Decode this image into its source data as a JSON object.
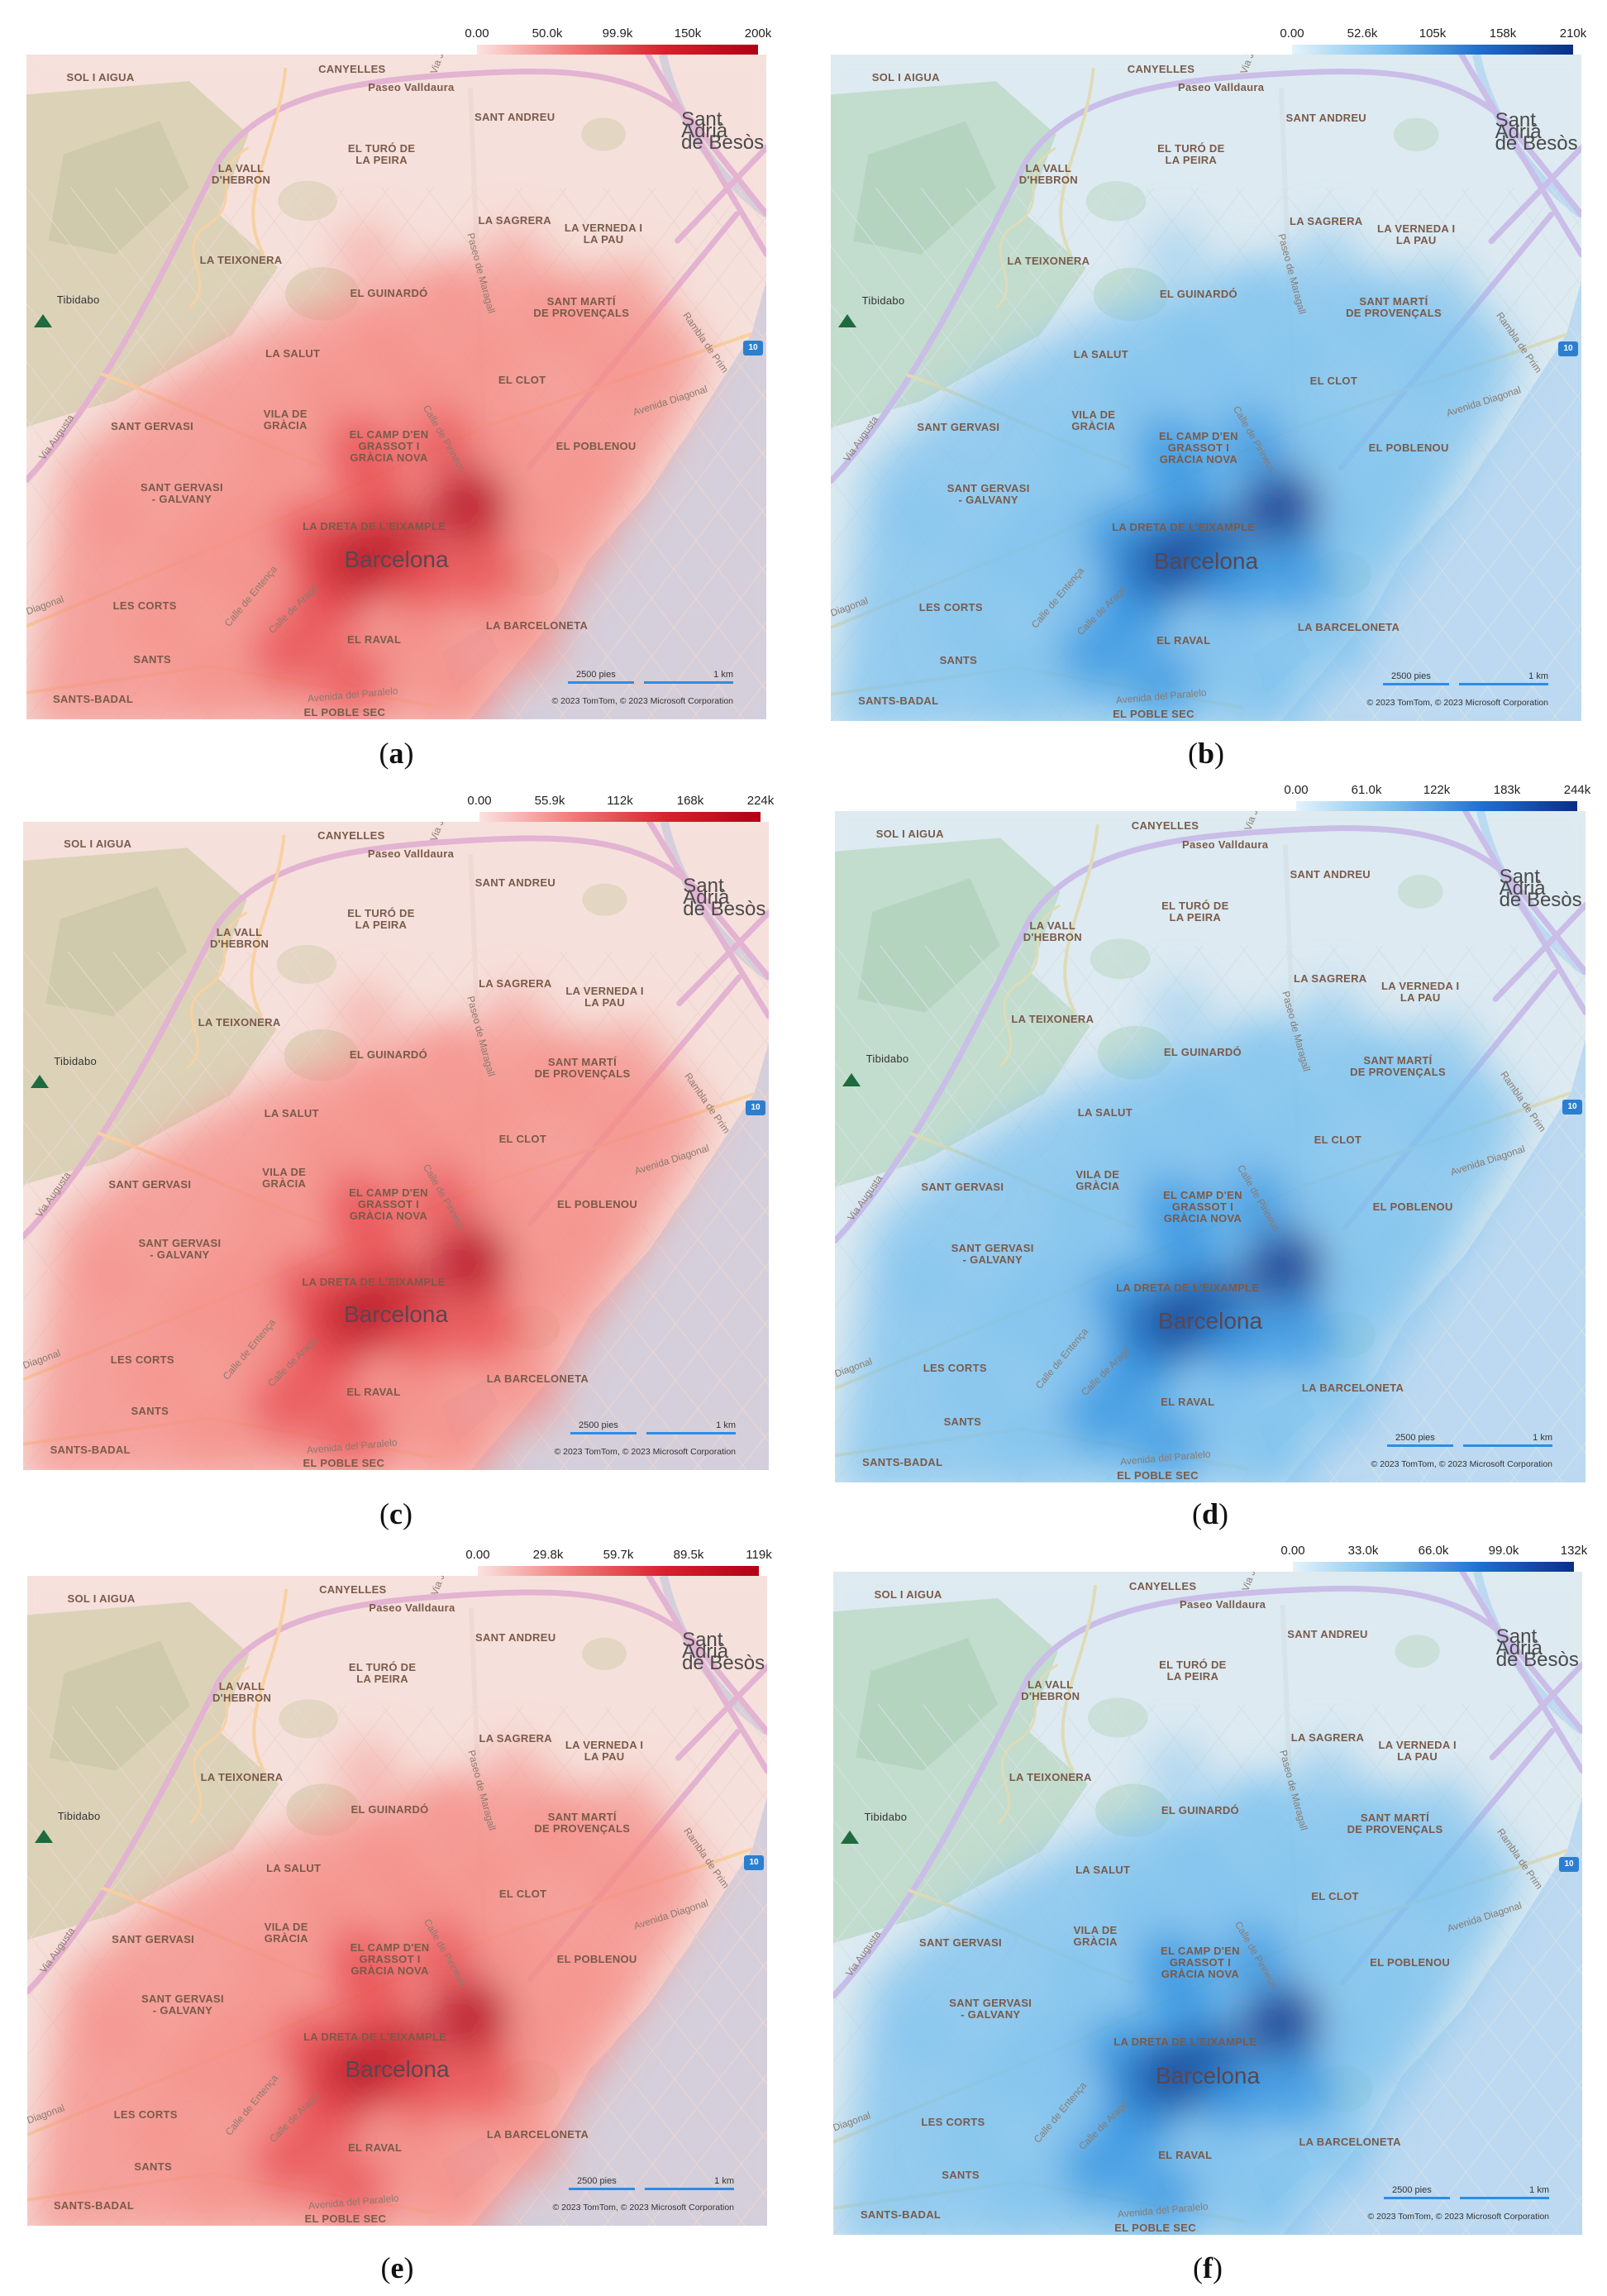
{
  "panels": [
    {
      "id": "a",
      "caption_letter": "a",
      "legend_ticks": [
        "0.00",
        "50.0k",
        "99.9k",
        "150k",
        "200k"
      ],
      "scheme": "red"
    },
    {
      "id": "b",
      "caption_letter": "b",
      "legend_ticks": [
        "0.00",
        "52.6k",
        "105k",
        "158k",
        "210k"
      ],
      "scheme": "blue"
    },
    {
      "id": "c",
      "caption_letter": "c",
      "legend_ticks": [
        "0.00",
        "55.9k",
        "112k",
        "168k",
        "224k"
      ],
      "scheme": "red"
    },
    {
      "id": "d",
      "caption_letter": "d",
      "legend_ticks": [
        "0.00",
        "61.0k",
        "122k",
        "183k",
        "244k"
      ],
      "scheme": "blue"
    },
    {
      "id": "e",
      "caption_letter": "e",
      "legend_ticks": [
        "0.00",
        "29.8k",
        "59.7k",
        "89.5k",
        "119k"
      ],
      "scheme": "red"
    },
    {
      "id": "f",
      "caption_letter": "f",
      "legend_ticks": [
        "0.00",
        "33.0k",
        "66.0k",
        "99.0k",
        "132k"
      ],
      "scheme": "blue"
    }
  ],
  "caption_open": "(",
  "caption_close": ")",
  "map_labels": {
    "sol_i_aigua": "SOL I AIGUA",
    "canyelles": "CANYELLES",
    "paseo_valldaura": "Paseo Valldaura",
    "sant_andreu": "SANT ANDREU",
    "sant_adria": "Sant Adrià\nde Besòs",
    "vall_hebron": "LA VALL\nD'HEBRON",
    "turo_peira": "EL TURÓ DE\nLA PEIRA",
    "sagrera": "LA SAGRERA",
    "verneda": "LA VERNEDA I\nLA PAU",
    "teixonera": "LA TEIXONERA",
    "tibidabo": "Tibidabo",
    "guinardo": "EL GUINARDÓ",
    "sant_marti": "SANT MARTÍ\nDE PROVENÇALS",
    "salut": "LA SALUT",
    "clot": "EL CLOT",
    "sant_gervasi": "SANT GERVASI",
    "vila_gracia": "VILA DE\nGRÀCIA",
    "camp_grassot": "EL CAMP D'EN\nGRASSOT I\nGRÀCIA NOVA",
    "poblenou": "EL POBLENOU",
    "sant_gervasi_galvany": "SANT GERVASI\n- GALVANY",
    "dreta_eixample": "LA DRETA DE L'EIXAMPLE",
    "barcelona": "Barcelona",
    "les_corts": "LES CORTS",
    "barceloneta": "LA BARCELONETA",
    "raval": "EL RAVAL",
    "sants": "SANTS",
    "sants_badal": "SANTS-BADAL",
    "poble_sec": "EL POBLE SEC",
    "via_augusta": "Via Augusta",
    "avenida_diagonal": "Avenida Diagonal",
    "diagonal_left": "Diagonal",
    "calle_entenza": "Calle de Entença",
    "calle_arago": "Calle de Aragó",
    "avenida_paralelo": "Avenida del Paralelo",
    "rambla_prim": "Rambla de Prim",
    "paseo_maragall": "Paseo de Maragall",
    "calle_pirineus": "Calle de Pirineus",
    "via_juli": "Via J",
    "ronda_badge": "10"
  },
  "scale_labels": {
    "feet": "2500 pies",
    "km": "1 km"
  },
  "copyright": "© 2023 TomTom, © 2023 Microsoft Corporation",
  "colors": {
    "red_light": "#fbe3e0",
    "red_dark": "#b10015",
    "blue_light": "#e4f2fb",
    "blue_dark": "#0a2f86",
    "water": "#a6c8ea",
    "park": "#a9c98d"
  }
}
